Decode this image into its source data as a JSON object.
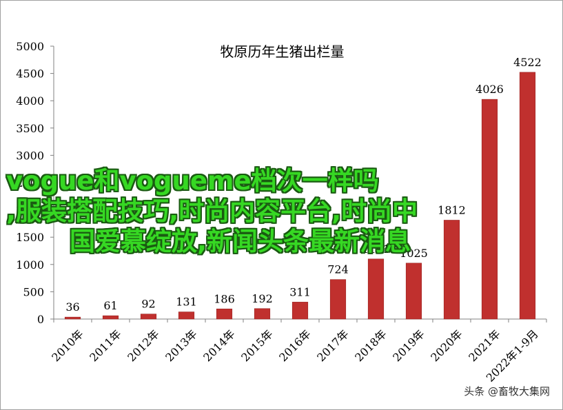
{
  "chart_data": {
    "type": "bar",
    "title": "牧原历年生猪出栏量",
    "categories": [
      "2010年",
      "2011年",
      "2012年",
      "2013年",
      "2014年",
      "2015年",
      "2016年",
      "2017年",
      "2018年",
      "2019年",
      "2020年",
      "2021年",
      "2022年1-9月"
    ],
    "values": [
      36,
      61,
      92,
      131,
      186,
      192,
      311,
      724,
      1101,
      1025,
      1812,
      4026,
      4522
    ],
    "data_labels": [
      "36",
      "61",
      "92",
      "131",
      "186",
      "192",
      "311",
      "724",
      "1101",
      "1025",
      "1812",
      "4026",
      "4522"
    ],
    "ylim": [
      0,
      5000
    ],
    "yticks": [
      "0",
      "500",
      "1000",
      "1500",
      "2000",
      "2500",
      "3000",
      "3500",
      "4000",
      "4500",
      "5000"
    ],
    "bar_color": "#c0302e",
    "grid": false,
    "legend": "none"
  },
  "overlay": {
    "line1": "vogue和vogueme档次一样吗",
    "line2": ",服装搭配技巧,时尚内容平台,时尚中",
    "line3": "国爱慕绽放,新闻头条最新消息",
    "color": "#36d823"
  },
  "watermark": "头条 @畜牧大集网"
}
